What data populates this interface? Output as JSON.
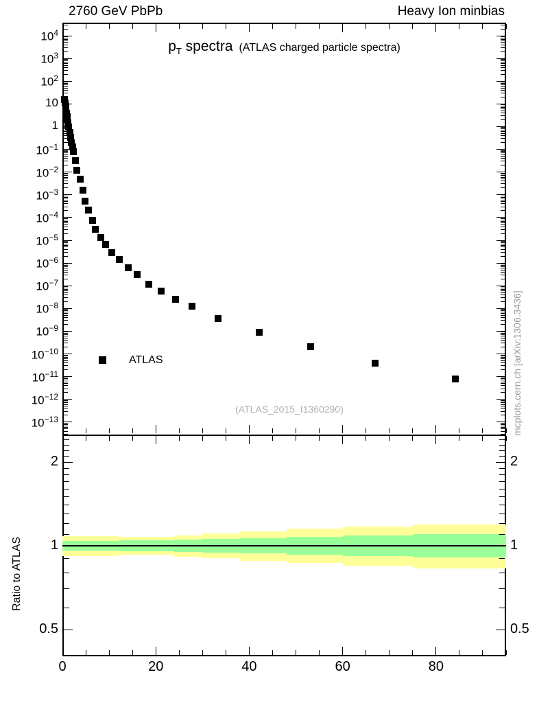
{
  "header": {
    "left": "2760 GeV PbPb",
    "right": "Heavy Ion minbias"
  },
  "title": {
    "p": "p",
    "sub": "T",
    "rest": " spectra",
    "paren": "(ATLAS charged particle spectra)"
  },
  "legend": {
    "label": "ATLAS"
  },
  "watermark": "(ATLAS_2015_I1360290)",
  "side_note": "mcplots.cern.ch [arXiv:1306.3436]",
  "ratio_ylabel": "Ratio to ATLAS",
  "colors": {
    "marker": "#000000",
    "band_inner_green": "#99ff99",
    "band_outer_yellow": "#ffff99",
    "gray_text": "#999999",
    "watermark_gray": "#b0b0b0"
  },
  "chart_data": [
    {
      "type": "scatter",
      "panel": "main",
      "title": "pT spectra (ATLAS charged particle spectra)",
      "x_range": [
        0,
        95
      ],
      "x_ticks_major": [
        0,
        20,
        40,
        60,
        80
      ],
      "x_tick_labels": [
        "0",
        "20",
        "40",
        "60",
        "80"
      ],
      "x_tick_minor_step": 5,
      "y_scale": "log",
      "y_range_exp": [
        -13.546,
        4.574
      ],
      "y_major_exponents": [
        4,
        3,
        2,
        1,
        0,
        -1,
        -2,
        -3,
        -4,
        -5,
        -6,
        -7,
        -8,
        -9,
        -10,
        -11,
        -12,
        -13
      ],
      "grid": false,
      "legend_position": "left-middle",
      "series": [
        {
          "name": "ATLAS",
          "marker": "filled-square",
          "color": "#000000",
          "points": [
            [
              0.5,
              16
            ],
            [
              0.6,
              11
            ],
            [
              0.7,
              7.8
            ],
            [
              0.8,
              5.5
            ],
            [
              0.9,
              3.9
            ],
            [
              1.0,
              2.8
            ],
            [
              1.1,
              2.0
            ],
            [
              1.2,
              1.45
            ],
            [
              1.35,
              0.95
            ],
            [
              1.55,
              0.55
            ],
            [
              1.75,
              0.33
            ],
            [
              1.95,
              0.2
            ],
            [
              2.15,
              0.125
            ],
            [
              2.4,
              0.078
            ],
            [
              2.8,
              0.032
            ],
            [
              3.1,
              0.012
            ],
            [
              3.8,
              0.0048
            ],
            [
              4.4,
              0.0016
            ],
            [
              4.9,
              0.00054
            ],
            [
              5.6,
              0.00022
            ],
            [
              6.4,
              7.5e-05
            ],
            [
              7.1,
              3.1e-05
            ],
            [
              8.2,
              1.3e-05
            ],
            [
              9.3,
              6.5e-06
            ],
            [
              10.6,
              2.9e-06
            ],
            [
              12.2,
              1.4e-06
            ],
            [
              14.1,
              6.3e-07
            ],
            [
              16.0,
              3e-07
            ],
            [
              18.5,
              1.2e-07
            ],
            [
              21.1,
              5.7e-08
            ],
            [
              24.2,
              2.6e-08
            ],
            [
              27.8,
              1.3e-08
            ],
            [
              33.4,
              3.7e-09
            ],
            [
              42.2,
              9e-10
            ],
            [
              53.1,
              2.1e-10
            ],
            [
              66.9,
              4e-11
            ],
            [
              84.1,
              8e-12
            ]
          ]
        }
      ]
    },
    {
      "type": "band-ratio",
      "panel": "ratio",
      "ylabel": "Ratio to ATLAS",
      "x_range": [
        0,
        95
      ],
      "x_ticks_major": [
        0,
        20,
        40,
        60,
        80
      ],
      "x_tick_minor_step": 5,
      "y_scale": "log",
      "y_range": [
        0.401,
        2.51
      ],
      "y_ticks_major": [
        {
          "v": 2,
          "label": "2"
        },
        {
          "v": 1,
          "label": "1"
        },
        {
          "v": 0.5,
          "label": "0.5"
        }
      ],
      "y_ticks_minor": [
        0.5,
        0.6,
        0.7,
        0.8,
        0.9,
        1.1,
        1.2,
        1.3,
        1.4,
        1.5,
        1.6,
        1.7,
        1.8,
        1.9,
        2.1,
        2.2,
        2.3,
        2.4
      ],
      "reference_line": 1.0,
      "bands": [
        {
          "x": [
            0,
            12
          ],
          "inner": [
            0.96,
            1.042
          ],
          "outer": [
            0.92,
            1.085
          ]
        },
        {
          "x": [
            12,
            24
          ],
          "inner": [
            0.955,
            1.045
          ],
          "outer": [
            0.93,
            1.075
          ]
        },
        {
          "x": [
            24,
            30
          ],
          "inner": [
            0.95,
            1.05
          ],
          "outer": [
            0.915,
            1.09
          ]
        },
        {
          "x": [
            30,
            38
          ],
          "inner": [
            0.945,
            1.057
          ],
          "outer": [
            0.902,
            1.105
          ]
        },
        {
          "x": [
            38,
            48
          ],
          "inner": [
            0.938,
            1.065
          ],
          "outer": [
            0.885,
            1.125
          ]
        },
        {
          "x": [
            48,
            60
          ],
          "inner": [
            0.928,
            1.075
          ],
          "outer": [
            0.866,
            1.15
          ]
        },
        {
          "x": [
            60,
            75
          ],
          "inner": [
            0.918,
            1.088
          ],
          "outer": [
            0.85,
            1.17
          ]
        },
        {
          "x": [
            75,
            95
          ],
          "inner": [
            0.908,
            1.1
          ],
          "outer": [
            0.83,
            1.195
          ]
        }
      ]
    }
  ]
}
